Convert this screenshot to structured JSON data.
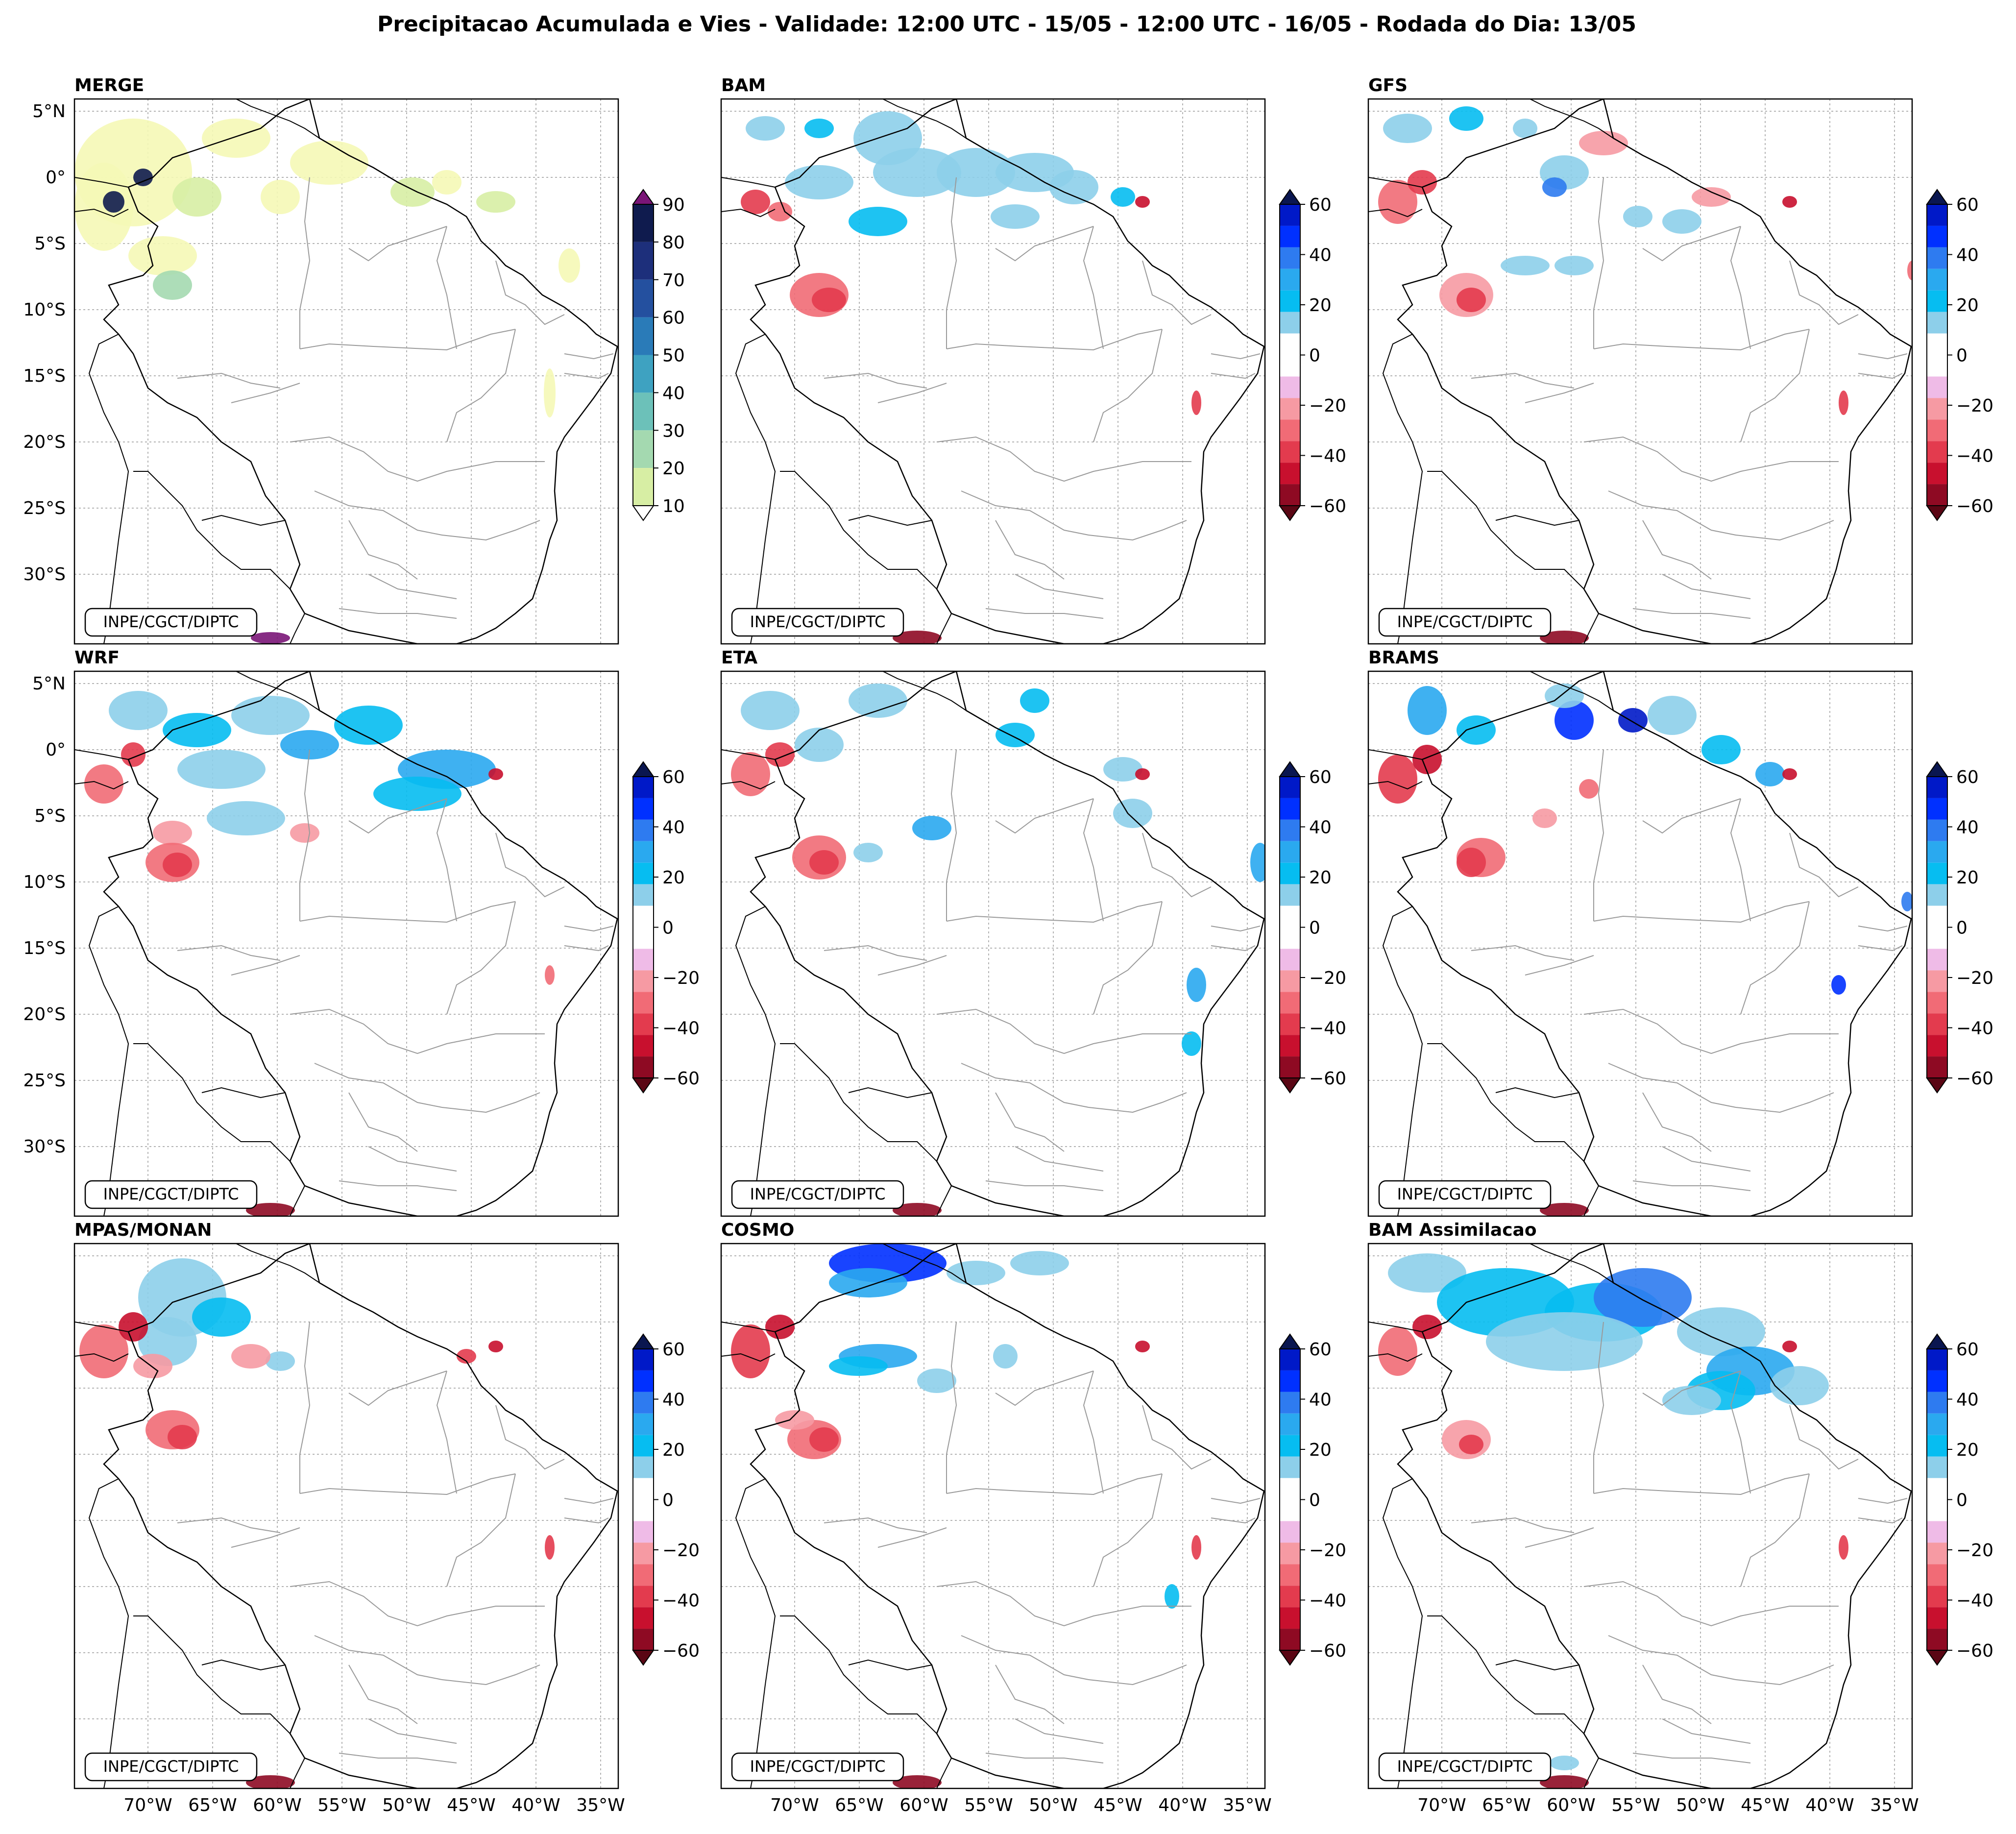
{
  "figure": {
    "title": "Precipitacao Acumulada e Vies - Validade: 12:00 UTC - 15/05 - 12:00 UTC - 16/05 - Rodada do Dia: 13/05",
    "credit": "INPE/CGCT/DIPTC"
  },
  "axes": {
    "lat_ticks": [
      "5°N",
      "0°",
      "5°S",
      "10°S",
      "15°S",
      "20°S",
      "25°S",
      "30°S"
    ],
    "lon_ticks": [
      "70°W",
      "65°W",
      "60°W",
      "55°W",
      "50°W",
      "45°W",
      "40°W",
      "35°W"
    ]
  },
  "colorbars": {
    "precip": {
      "ticks": [
        "90",
        "80",
        "70",
        "60",
        "50",
        "40",
        "30",
        "20",
        "10"
      ],
      "colors": [
        "#ffffff",
        "#f5f8b6",
        "#d7eea4",
        "#a4d9b0",
        "#6cc1b9",
        "#3ea2c1",
        "#2a7bb8",
        "#24509f",
        "#1d2f7b",
        "#0f1b4e",
        "#7a1577"
      ]
    },
    "bias": {
      "ticks": [
        "60",
        "40",
        "20",
        "0",
        "−20",
        "−40",
        "−60"
      ],
      "colors": [
        "#0019c8",
        "#0030ff",
        "#2e7bf0",
        "#2aa9ef",
        "#06bdf1",
        "#8dcfea",
        "#ffffff",
        "#ffffff",
        "#efbbe7",
        "#f69aa3",
        "#f16b76",
        "#e33b4e",
        "#c8102e",
        "#8e0a23"
      ]
    }
  },
  "panels": [
    {
      "id": "merge",
      "title": "MERGE",
      "kind": "precip"
    },
    {
      "id": "bam",
      "title": "BAM",
      "kind": "bias"
    },
    {
      "id": "gfs",
      "title": "GFS",
      "kind": "bias"
    },
    {
      "id": "wrf",
      "title": "WRF",
      "kind": "bias"
    },
    {
      "id": "eta",
      "title": "ETA",
      "kind": "bias"
    },
    {
      "id": "brams",
      "title": "BRAMS",
      "kind": "bias"
    },
    {
      "id": "mpas",
      "title": "MPAS/MONAN",
      "kind": "bias"
    },
    {
      "id": "cosmo",
      "title": "COSMO",
      "kind": "bias"
    },
    {
      "id": "bamassim",
      "title": "BAM Assimilacao",
      "kind": "bias"
    }
  ]
}
